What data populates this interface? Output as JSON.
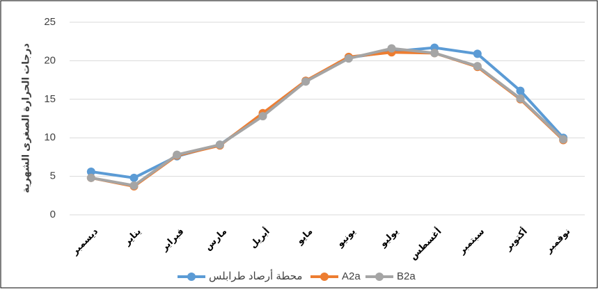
{
  "chart_data": {
    "type": "line",
    "y_label": "درجات الحرارة الصغرى الشهرية",
    "categories": [
      "ديسمبر",
      "يناير",
      "فبراير",
      "مارس",
      "أبريل",
      "مايو",
      "يونيو",
      "يوليو",
      "أغسطس",
      "سبتمبر",
      "أكتوبر",
      "نوفمبر"
    ],
    "series": [
      {
        "name": "محطة أرصاد طرابلس",
        "color": "#5b9bd5",
        "values": [
          5.6,
          4.8,
          7.6,
          9.1,
          13.0,
          17.4,
          20.4,
          21.2,
          21.7,
          20.9,
          16.1,
          10.0
        ]
      },
      {
        "name": "A2a",
        "color": "#ed7d31",
        "values": [
          4.8,
          3.7,
          7.7,
          9.0,
          13.2,
          17.4,
          20.5,
          21.1,
          21.0,
          19.2,
          15.0,
          9.7
        ]
      },
      {
        "name": "B2a",
        "color": "#a5a5a5",
        "values": [
          4.8,
          3.8,
          7.8,
          9.1,
          12.8,
          17.3,
          20.3,
          21.6,
          21.0,
          19.3,
          15.1,
          9.8
        ]
      }
    ],
    "ylim": [
      0,
      25
    ],
    "yticks": [
      0,
      5,
      10,
      15,
      20,
      25
    ],
    "grid": true,
    "legend": "bottom"
  }
}
